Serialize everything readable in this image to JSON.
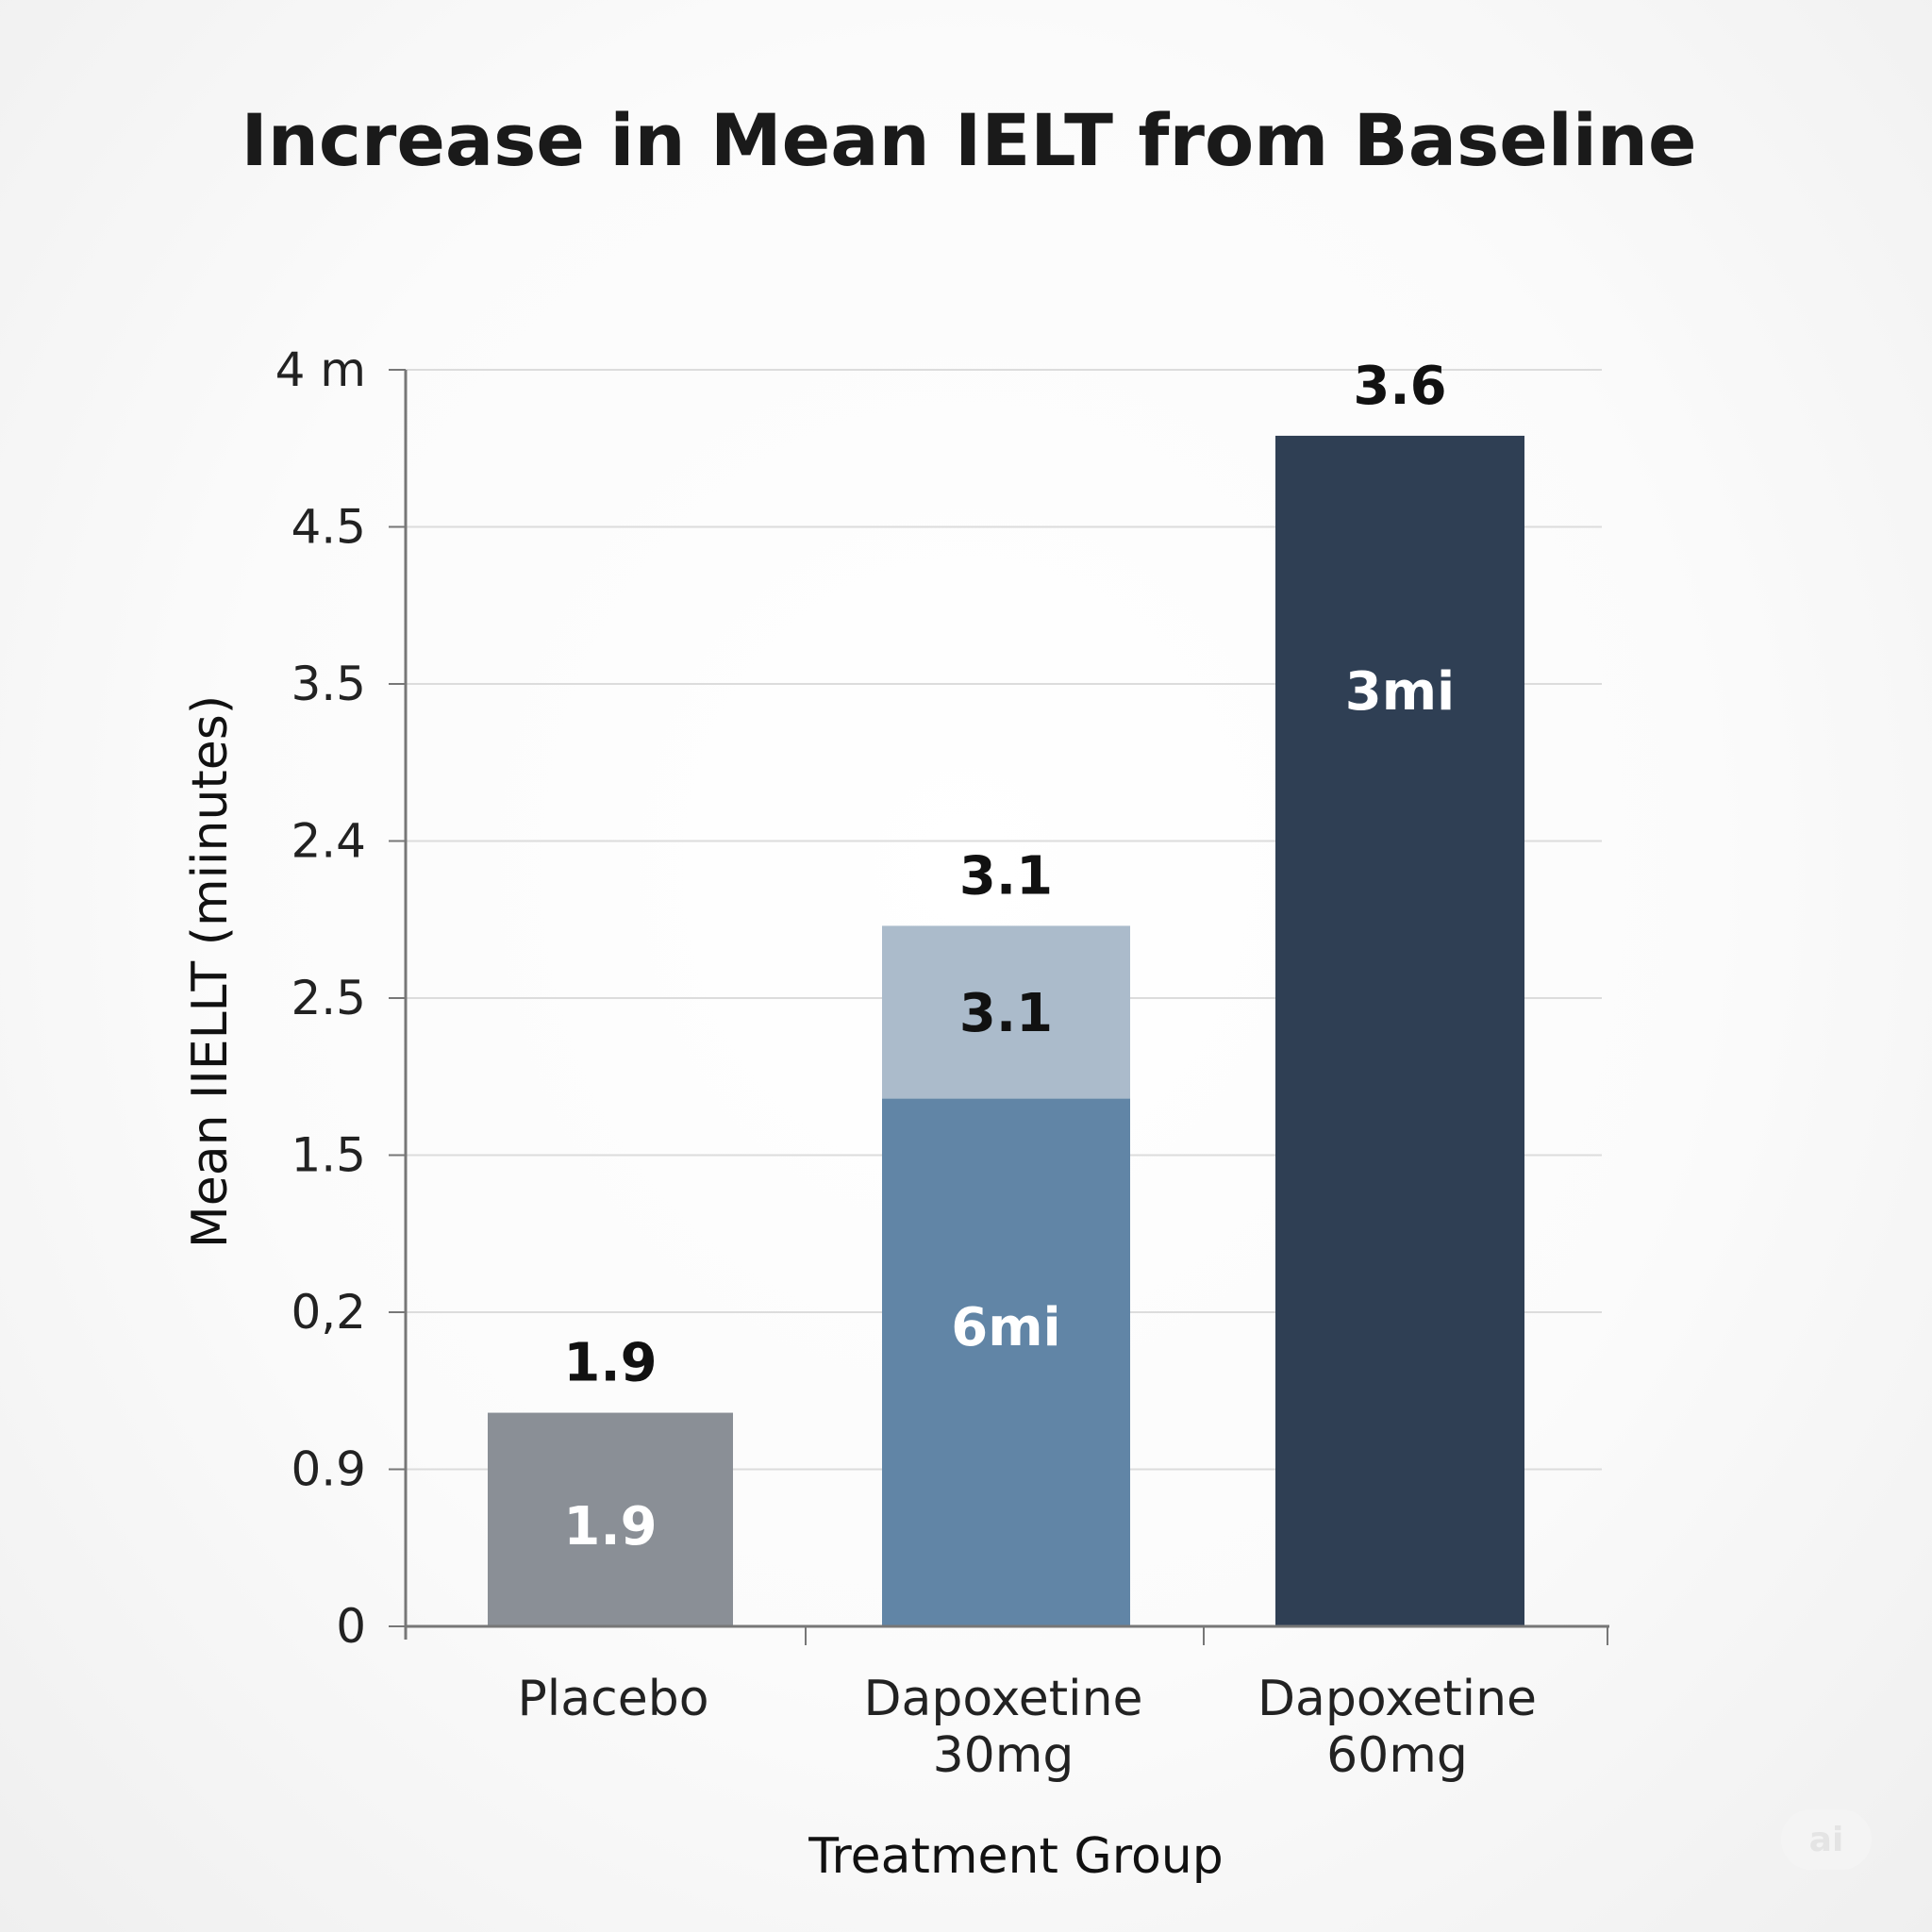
{
  "chart_data": {
    "type": "bar",
    "title": "Increase in Mean IELT from Baseline",
    "xlabel": "Treatment Group",
    "ylabel": "Mean IIELLT (miinutes)",
    "ytick_labels": [
      "0",
      "0.9",
      "0,2",
      "1.5",
      "2.5",
      "2.4",
      "3.5",
      "4.5",
      "4 m"
    ],
    "ylim": [
      0,
      4
    ],
    "grid": true,
    "categories": [
      [
        "Placebo"
      ],
      [
        "Dapoxetine",
        "30mg"
      ],
      [
        "Dapoxetine",
        "60mg"
      ]
    ],
    "series": [
      {
        "values": [
          0.68,
          1.68,
          3.79
        ],
        "colors": [
          "#8a8f96",
          "#6185a6",
          "#2f3f54"
        ],
        "inner_labels": [
          "1.9",
          "6mi",
          "3mi"
        ]
      },
      {
        "values": [
          0,
          0.55,
          0
        ],
        "colors": [
          "",
          "#abbbcb",
          ""
        ],
        "inner_labels": [
          "",
          "3.1",
          ""
        ]
      }
    ],
    "top_labels": [
      "1.9",
      "3.1",
      "3.6"
    ]
  },
  "watermark": "ai"
}
